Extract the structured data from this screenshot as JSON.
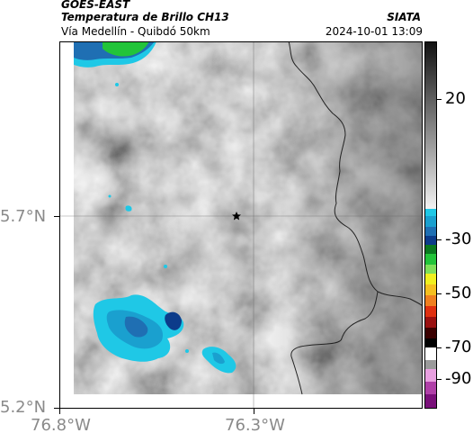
{
  "header": {
    "source": "GOES-EAST",
    "product": "Temperatura de Brillo CH13",
    "location": "Vía Medellín - Quibdó 50km",
    "agency": "SIATA",
    "datetime": "2024-10-01 13:09"
  },
  "axes": {
    "y_ticks": [
      "5.7°N",
      "5.2°N"
    ],
    "x_ticks": [
      "76.8°W",
      "76.3°W"
    ]
  },
  "colorbar": {
    "ticks": [
      "20",
      "-30",
      "-50",
      "-70",
      "-90"
    ]
  },
  "map": {
    "marker_icon": "star-icon",
    "colors": {
      "cold_cyan": "#1fc8e6",
      "cold_blue": "#1f6fb3",
      "deep_blue": "#0c3b8a",
      "green": "#22c43a",
      "warm_gray": "#9a9a9a"
    }
  }
}
